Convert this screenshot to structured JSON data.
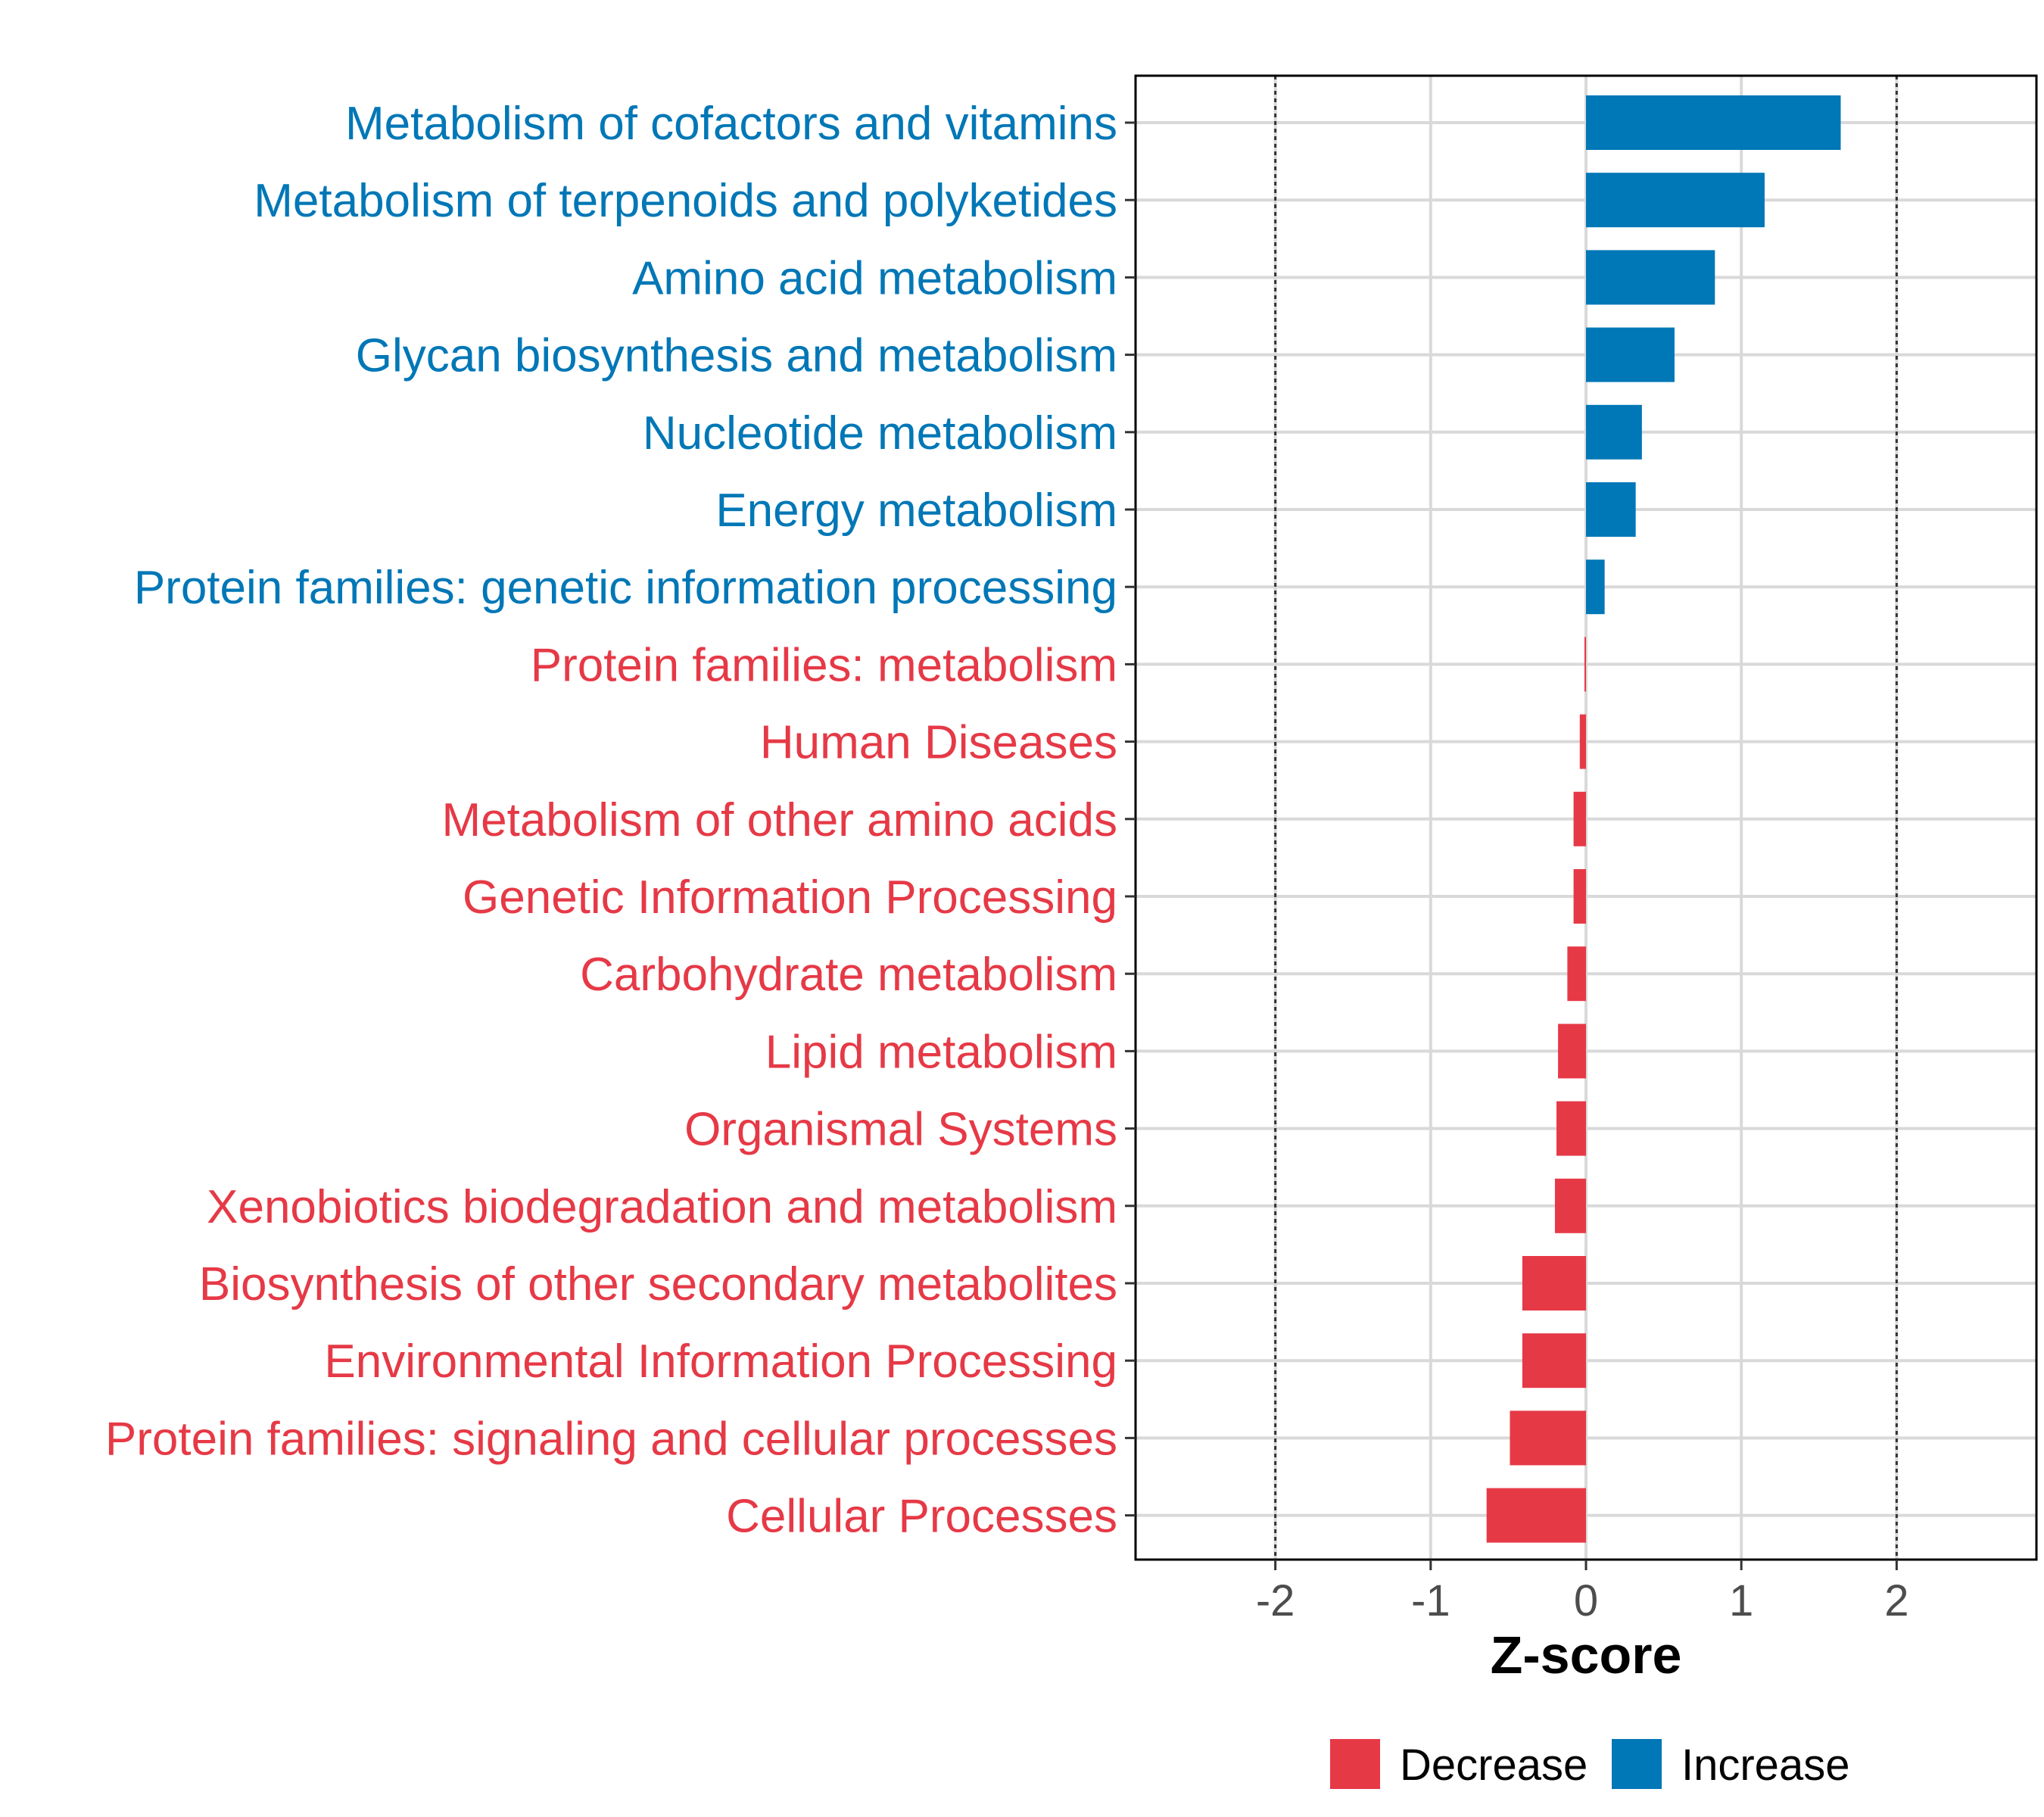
{
  "chart_data": {
    "type": "bar",
    "orientation": "horizontal",
    "title": "",
    "xlabel": "Z-score",
    "ylabel": "",
    "xlim": [
      -2.9,
      2.9
    ],
    "x_ticks": [
      -2,
      -1,
      0,
      1,
      2
    ],
    "x_tick_labels": [
      "-2",
      "-1",
      "0",
      "1",
      "2"
    ],
    "reference_lines": [
      -2,
      2
    ],
    "grid": true,
    "categories": [
      "Metabolism of cofactors and vitamins",
      "Metabolism of terpenoids and polyketides",
      "Amino acid metabolism",
      "Glycan biosynthesis and metabolism",
      "Nucleotide metabolism",
      "Energy metabolism",
      "Protein families: genetic information processing",
      "Protein families: metabolism",
      "Human Diseases",
      "Metabolism of other amino acids",
      "Genetic Information Processing",
      "Carbohydrate metabolism",
      "Lipid metabolism",
      "Organismal Systems",
      "Xenobiotics biodegradation and metabolism",
      "Biosynthesis of other secondary metabolites",
      "Environmental Information Processing",
      "Protein families: signaling and cellular processes",
      "Cellular Processes"
    ],
    "values": [
      1.64,
      1.15,
      0.83,
      0.57,
      0.36,
      0.32,
      0.12,
      -0.01,
      -0.04,
      -0.08,
      -0.08,
      -0.12,
      -0.18,
      -0.19,
      -0.2,
      -0.41,
      -0.41,
      -0.49,
      -0.64
    ],
    "groups": [
      "Increase",
      "Increase",
      "Increase",
      "Increase",
      "Increase",
      "Increase",
      "Increase",
      "Decrease",
      "Decrease",
      "Decrease",
      "Decrease",
      "Decrease",
      "Decrease",
      "Decrease",
      "Decrease",
      "Decrease",
      "Decrease",
      "Decrease",
      "Decrease"
    ],
    "legend": {
      "position": "bottom",
      "entries": [
        {
          "label": "Decrease",
          "color": "#e63946"
        },
        {
          "label": "Increase",
          "color": "#0077b6"
        }
      ]
    }
  }
}
